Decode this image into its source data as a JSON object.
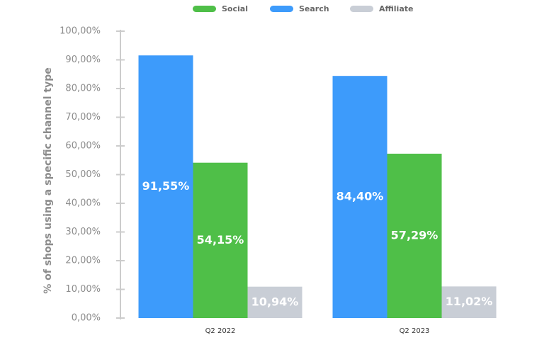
{
  "chart_data": {
    "type": "bar",
    "y_label": "% of shops using a specific channel type",
    "categories": [
      "Q2 2022",
      "Q2 2023"
    ],
    "series": [
      {
        "name": "Search",
        "color": "#3d9bfb",
        "values": [
          91.55,
          84.4
        ],
        "value_labels": [
          "91,55%",
          "84,40%"
        ]
      },
      {
        "name": "Social",
        "color": "#4fbf48",
        "values": [
          54.15,
          57.29
        ],
        "value_labels": [
          "54,15%",
          "57,29%"
        ]
      },
      {
        "name": "Affiliate",
        "color": "#c9ced6",
        "values": [
          10.94,
          11.02
        ],
        "value_labels": [
          "10,94%",
          "11,02%"
        ]
      }
    ],
    "ylim": [
      0,
      100
    ],
    "yticks": [
      {
        "value": 0,
        "label": "0,00%"
      },
      {
        "value": 10,
        "label": "10,00%"
      },
      {
        "value": 20,
        "label": "20,00%"
      },
      {
        "value": 30,
        "label": "30,00%"
      },
      {
        "value": 40,
        "label": "40,00%"
      },
      {
        "value": 50,
        "label": "50,00%"
      },
      {
        "value": 60,
        "label": "60,00%"
      },
      {
        "value": 70,
        "label": "70,00%"
      },
      {
        "value": 80,
        "label": "80,00%"
      },
      {
        "value": 90,
        "label": "90,00%"
      },
      {
        "value": 100,
        "label": "100,00%"
      }
    ],
    "grid": false
  }
}
